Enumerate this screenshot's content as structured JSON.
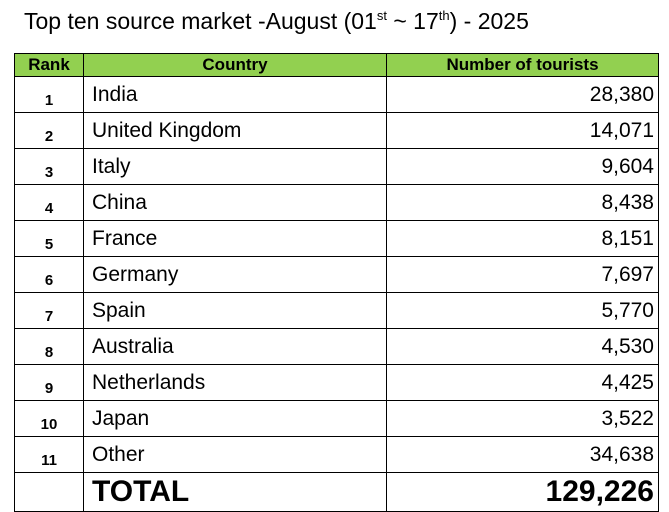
{
  "title": {
    "parts": [
      "Top ten source market -August (01",
      "st",
      " ~ 17",
      "th",
      ") - 2025"
    ]
  },
  "table": {
    "header": [
      "Rank",
      "Country",
      "Number of tourists"
    ],
    "rows": [
      [
        "1",
        "India",
        "28,380"
      ],
      [
        "2",
        "United Kingdom",
        "14,071"
      ],
      [
        "3",
        "Italy",
        "9,604"
      ],
      [
        "4",
        "China",
        "8,438"
      ],
      [
        "5",
        "France",
        "8,151"
      ],
      [
        "6",
        "Germany",
        "7,697"
      ],
      [
        "7",
        "Spain",
        "5,770"
      ],
      [
        "8",
        "Australia",
        "4,530"
      ],
      [
        "9",
        "Netherlands",
        "4,425"
      ],
      [
        "10",
        "Japan",
        "3,522"
      ],
      [
        "11",
        "Other",
        "34,638"
      ]
    ],
    "total": {
      "label": "TOTAL",
      "value": "129,226"
    }
  }
}
